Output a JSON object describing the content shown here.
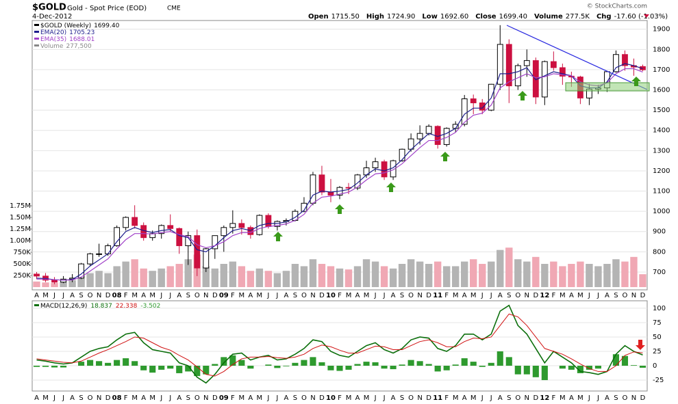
{
  "header": {
    "symbol": "$GOLD",
    "name": "Gold - Spot Price (EOD)",
    "exchange": "CME",
    "date": "4-Dec-2012",
    "credit": "© StockCharts.com",
    "stats": [
      {
        "label": "Open",
        "value": "1715.50"
      },
      {
        "label": "High",
        "value": "1724.90"
      },
      {
        "label": "Low",
        "value": "1692.60"
      },
      {
        "label": "Close",
        "value": "1699.40"
      },
      {
        "label": "Volume",
        "value": "277.5K"
      },
      {
        "label": "Chg",
        "value": "-17.60 (-1.03%)"
      }
    ]
  },
  "chart_data": [
    {
      "type": "candlestick",
      "categories": [
        "A",
        "M",
        "J",
        "J",
        "A",
        "S",
        "O",
        "N",
        "D",
        "08",
        "F",
        "M",
        "A",
        "M",
        "J",
        "J",
        "A",
        "S",
        "O",
        "N",
        "D",
        "09",
        "F",
        "M",
        "A",
        "M",
        "J",
        "J",
        "A",
        "S",
        "O",
        "N",
        "D",
        "10",
        "F",
        "M",
        "A",
        "M",
        "J",
        "J",
        "A",
        "S",
        "O",
        "N",
        "D",
        "11",
        "F",
        "M",
        "A",
        "M",
        "J",
        "J",
        "A",
        "S",
        "O",
        "N",
        "D",
        "12",
        "F",
        "M",
        "A",
        "M",
        "J",
        "J",
        "A",
        "S",
        "O",
        "N",
        "D"
      ],
      "price": {
        "name": "$GOLD (Weekly)",
        "last": "1699.40",
        "open": [
          690,
          680,
          660,
          650,
          665,
          670,
          740,
          790,
          790,
          830,
          920,
          970,
          930,
          870,
          890,
          930,
          915,
          830,
          880,
          720,
          815,
          880,
          920,
          940,
          920,
          885,
          980,
          925,
          950,
          955,
          1000,
          1040,
          1180,
          1095,
          1080,
          1118,
          1115,
          1180,
          1215,
          1245,
          1170,
          1250,
          1307,
          1358,
          1385,
          1420,
          1330,
          1410,
          1430,
          1556,
          1536,
          1500,
          1628,
          1825,
          1620,
          1720,
          1745,
          1565,
          1740,
          1710,
          1668,
          1664,
          1560,
          1604,
          1610,
          1690,
          1775,
          1720,
          1715.5
        ],
        "high": [
          700,
          695,
          675,
          680,
          690,
          745,
          795,
          840,
          840,
          930,
          975,
          1030,
          945,
          905,
          935,
          985,
          920,
          900,
          910,
          820,
          880,
          930,
          1005,
          960,
          930,
          985,
          990,
          955,
          965,
          1010,
          1070,
          1195,
          1225,
          1160,
          1125,
          1140,
          1185,
          1250,
          1265,
          1255,
          1255,
          1310,
          1385,
          1425,
          1430,
          1425,
          1415,
          1445,
          1575,
          1577,
          1555,
          1630,
          1920,
          1850,
          1730,
          1800,
          1760,
          1745,
          1790,
          1730,
          1690,
          1670,
          1630,
          1625,
          1695,
          1795,
          1795,
          1755,
          1724.9
        ],
        "low": [
          665,
          650,
          640,
          645,
          650,
          665,
          730,
          775,
          780,
          825,
          905,
          915,
          855,
          855,
          865,
          900,
          790,
          735,
          680,
          700,
          765,
          800,
          890,
          885,
          865,
          880,
          915,
          905,
          930,
          950,
          995,
          1030,
          1080,
          1045,
          1060,
          1085,
          1105,
          1165,
          1195,
          1155,
          1155,
          1245,
          1295,
          1330,
          1375,
          1310,
          1320,
          1390,
          1420,
          1480,
          1480,
          1495,
          1600,
          1535,
          1600,
          1665,
          1530,
          1525,
          1695,
          1625,
          1615,
          1530,
          1525,
          1580,
          1590,
          1685,
          1695,
          1670,
          1692.6
        ],
        "close": [
          680,
          660,
          650,
          665,
          670,
          740,
          790,
          790,
          830,
          920,
          970,
          930,
          870,
          890,
          930,
          915,
          830,
          880,
          720,
          815,
          880,
          920,
          940,
          920,
          885,
          980,
          925,
          950,
          955,
          1000,
          1040,
          1180,
          1095,
          1080,
          1118,
          1115,
          1180,
          1215,
          1245,
          1170,
          1250,
          1307,
          1358,
          1385,
          1420,
          1330,
          1410,
          1430,
          1556,
          1536,
          1500,
          1628,
          1825,
          1620,
          1720,
          1745,
          1565,
          1740,
          1710,
          1668,
          1664,
          1560,
          1604,
          1610,
          1690,
          1775,
          1720,
          1713,
          1699.4
        ]
      },
      "series": [
        {
          "name": "EMA(20)",
          "last": "1705.23",
          "color": "#1c1c8c",
          "values": [
            670,
            668,
            662,
            660,
            663,
            690,
            730,
            760,
            790,
            850,
            900,
            920,
            905,
            895,
            905,
            910,
            880,
            870,
            810,
            800,
            830,
            870,
            905,
            915,
            905,
            930,
            940,
            940,
            948,
            970,
            1005,
            1080,
            1100,
            1095,
            1100,
            1108,
            1140,
            1180,
            1210,
            1200,
            1215,
            1255,
            1305,
            1345,
            1385,
            1370,
            1385,
            1410,
            1480,
            1510,
            1510,
            1560,
            1680,
            1680,
            1690,
            1710,
            1650,
            1670,
            1690,
            1680,
            1670,
            1620,
            1610,
            1610,
            1640,
            1710,
            1730,
            1720,
            1705.23
          ]
        },
        {
          "name": "EMA(35)",
          "last": "1688.01",
          "color": "#a040c8",
          "values": [
            665,
            665,
            662,
            660,
            661,
            675,
            705,
            735,
            765,
            815,
            860,
            890,
            890,
            888,
            895,
            900,
            885,
            875,
            835,
            820,
            830,
            850,
            880,
            895,
            895,
            915,
            925,
            930,
            938,
            955,
            985,
            1040,
            1070,
            1075,
            1085,
            1095,
            1120,
            1155,
            1185,
            1190,
            1205,
            1235,
            1275,
            1315,
            1350,
            1350,
            1365,
            1390,
            1440,
            1475,
            1485,
            1525,
            1610,
            1640,
            1660,
            1680,
            1660,
            1665,
            1680,
            1675,
            1670,
            1640,
            1625,
            1620,
            1635,
            1680,
            1705,
            1705,
            1688.01
          ]
        },
        {
          "name": "Volume",
          "last": "277,500",
          "axis": "y2",
          "color": "#888888",
          "values": [
            120000,
            100000,
            90000,
            110000,
            150000,
            250000,
            300000,
            350000,
            300000,
            450000,
            550000,
            600000,
            400000,
            350000,
            400000,
            450000,
            500000,
            600000,
            700000,
            450000,
            400000,
            500000,
            550000,
            450000,
            350000,
            400000,
            350000,
            300000,
            350000,
            500000,
            450000,
            600000,
            500000,
            450000,
            400000,
            380000,
            450000,
            600000,
            550000,
            450000,
            400000,
            500000,
            600000,
            550000,
            500000,
            550000,
            450000,
            450000,
            550000,
            600000,
            500000,
            550000,
            800000,
            850000,
            600000,
            550000,
            650000,
            500000,
            550000,
            450000,
            500000,
            550000,
            500000,
            450000,
            500000,
            600000,
            550000,
            650000,
            277500
          ]
        }
      ],
      "up_color": "#000000",
      "down_color": "#cc1040",
      "volume_up_color": "#b4b4b4",
      "volume_down_color": "#f0a8b4",
      "ylim": [
        612,
        1943
      ],
      "yticks": [
        700,
        800,
        900,
        1000,
        1100,
        1200,
        1300,
        1400,
        1500,
        1600,
        1700,
        1800,
        1900
      ],
      "y2lim": [
        -59000,
        5740000
      ],
      "y2ticks": [
        {
          "value": 250000,
          "label": "250K"
        },
        {
          "value": 500000,
          "label": "500K"
        },
        {
          "value": 750000,
          "label": "750K"
        },
        {
          "value": 1000000,
          "label": "1.00M"
        },
        {
          "value": 1250000,
          "label": "1.25M"
        },
        {
          "value": 1500000,
          "label": "1.50M"
        },
        {
          "value": 1750000,
          "label": "1.75M"
        }
      ],
      "grid": true
    },
    {
      "type": "macd",
      "name": "MACD(12,26,9)",
      "series": [
        {
          "kind": "line",
          "last": "18.837",
          "color": "#0a6e0a",
          "values": [
            10,
            8,
            5,
            3,
            5,
            15,
            25,
            30,
            33,
            45,
            55,
            58,
            40,
            28,
            25,
            22,
            5,
            0,
            -20,
            -30,
            -15,
            5,
            20,
            22,
            10,
            15,
            18,
            10,
            12,
            20,
            30,
            45,
            42,
            25,
            18,
            15,
            25,
            35,
            40,
            28,
            22,
            30,
            45,
            50,
            48,
            30,
            25,
            35,
            55,
            55,
            45,
            55,
            95,
            105,
            70,
            55,
            30,
            5,
            25,
            15,
            5,
            -10,
            -12,
            -15,
            -10,
            20,
            35,
            25,
            18.8
          ]
        },
        {
          "kind": "line",
          "last": "22.338",
          "color": "#d01010",
          "values": [
            12,
            10,
            8,
            6,
            5,
            8,
            15,
            22,
            28,
            35,
            42,
            50,
            48,
            40,
            32,
            27,
            18,
            10,
            -2,
            -15,
            -18,
            -10,
            2,
            12,
            15,
            15,
            16,
            14,
            13,
            15,
            20,
            30,
            36,
            33,
            27,
            22,
            22,
            28,
            34,
            33,
            28,
            28,
            35,
            42,
            45,
            40,
            33,
            33,
            42,
            48,
            47,
            50,
            70,
            90,
            85,
            70,
            50,
            30,
            25,
            20,
            12,
            3,
            -5,
            -10,
            -10,
            0,
            18,
            24,
            22.3
          ]
        },
        {
          "kind": "histogram",
          "last": "-3.502",
          "color": "#2e9a2e",
          "values": [
            -2,
            -2,
            -3,
            -3,
            0,
            7,
            10,
            8,
            5,
            10,
            13,
            8,
            -8,
            -12,
            -7,
            -5,
            -13,
            -10,
            -18,
            -15,
            3,
            15,
            18,
            10,
            -5,
            0,
            2,
            -4,
            -1,
            5,
            10,
            15,
            6,
            -8,
            -9,
            -7,
            3,
            7,
            6,
            -5,
            -6,
            2,
            10,
            8,
            3,
            -10,
            -8,
            2,
            13,
            7,
            -2,
            5,
            25,
            15,
            -15,
            -15,
            -20,
            -25,
            0,
            -5,
            -7,
            -13,
            -7,
            -5,
            0,
            20,
            17,
            1,
            -3.5
          ]
        }
      ],
      "ylim": [
        -44,
        113
      ],
      "yticks": [
        -25,
        0,
        25,
        50,
        75,
        100
      ],
      "grid": true
    }
  ]
}
